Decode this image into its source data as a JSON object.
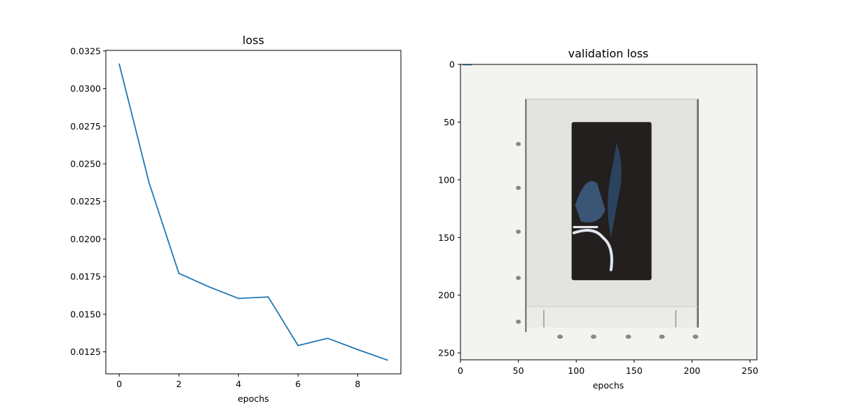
{
  "chart_data": [
    {
      "type": "line",
      "title": "loss",
      "xlabel": "epochs",
      "ylabel": "",
      "x": [
        0,
        1,
        2,
        3,
        4,
        5,
        6,
        7,
        8,
        9
      ],
      "series": [
        {
          "values": [
            0.03163,
            0.02375,
            0.01772,
            0.01683,
            0.01605,
            0.01615,
            0.01292,
            0.0134,
            0.01265,
            0.01195
          ]
        }
      ],
      "xlim": [
        -0.45,
        9.45
      ],
      "ylim": [
        0.01104,
        0.03254
      ],
      "xticks": [
        0,
        2,
        4,
        6,
        8
      ],
      "xtick_labels": [
        "0",
        "2",
        "4",
        "6",
        "8"
      ],
      "yticks": [
        0.0125,
        0.015,
        0.0175,
        0.02,
        0.0225,
        0.025,
        0.0275,
        0.03,
        0.0325
      ],
      "ytick_labels": [
        "0.0125",
        "0.0150",
        "0.0175",
        "0.0200",
        "0.0225",
        "0.0250",
        "0.0275",
        "0.0300",
        "0.0325"
      ],
      "grid": false,
      "color": "#1f77b4"
    },
    {
      "type": "image",
      "title": "validation loss",
      "xlabel": "epochs",
      "ylabel": "",
      "xlim": [
        0,
        256
      ],
      "ylim": [
        256,
        0
      ],
      "xticks": [
        0,
        50,
        100,
        150,
        200,
        250
      ],
      "xtick_labels": [
        "0",
        "50",
        "100",
        "150",
        "200",
        "250"
      ],
      "yticks": [
        0,
        50,
        100,
        150,
        200,
        250
      ],
      "ytick_labels": [
        "0",
        "50",
        "100",
        "150",
        "200",
        "250"
      ],
      "grid": false,
      "image_colors": {
        "background": "#f3f3f0",
        "panel": "#e3e3df",
        "screen": "#231f1e",
        "figure": "#3f5f86",
        "frame": "#6a6460"
      }
    }
  ]
}
